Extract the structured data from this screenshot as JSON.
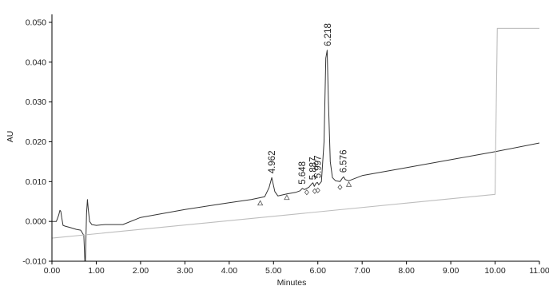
{
  "chart_data": {
    "type": "line",
    "xlabel": "Minutes",
    "ylabel": "AU",
    "xlim": [
      0.0,
      11.0
    ],
    "ylim": [
      -0.01,
      0.052
    ],
    "x_ticks": [
      "0.00",
      "1.00",
      "2.00",
      "3.00",
      "4.00",
      "5.00",
      "6.00",
      "7.00",
      "8.00",
      "9.00",
      "10.00",
      "11.00"
    ],
    "y_ticks": [
      "-0.010",
      "0.000",
      "0.010",
      "0.020",
      "0.030",
      "0.040",
      "0.050"
    ],
    "grid": false,
    "colors": {
      "chromatogram": "#333333",
      "gradient": "#bdbdbd",
      "axis": "#000000",
      "marker": "#555555"
    },
    "series": [
      {
        "x": [
          0.0,
          0.1,
          0.15,
          0.18,
          0.2,
          0.22,
          0.25,
          0.3,
          0.4,
          0.55,
          0.65,
          0.72,
          0.75,
          0.78,
          0.8,
          0.82,
          0.85,
          0.9,
          1.0,
          1.2,
          1.6,
          2.0,
          3.0,
          4.0,
          4.5,
          4.8,
          4.9,
          4.96,
          5.03,
          5.1,
          5.3,
          5.5,
          5.6,
          5.65,
          5.7,
          5.8,
          5.86,
          5.89,
          5.92,
          5.96,
          5.99,
          6.02,
          6.08,
          6.14,
          6.18,
          6.21,
          6.24,
          6.28,
          6.33,
          6.4,
          6.5,
          6.55,
          6.58,
          6.62,
          6.7,
          7.0,
          8.0,
          9.0,
          10.0,
          11.0
        ],
        "y": [
          0.0,
          0.0,
          0.0015,
          0.0028,
          0.0025,
          0.001,
          -0.001,
          -0.0012,
          -0.0015,
          -0.002,
          -0.0022,
          -0.0035,
          -0.012,
          0.002,
          0.0055,
          0.003,
          0.0,
          -0.0008,
          -0.001,
          -0.0008,
          -0.0008,
          0.001,
          0.003,
          0.0047,
          0.0055,
          0.0062,
          0.0085,
          0.011,
          0.0075,
          0.0064,
          0.0069,
          0.0073,
          0.0077,
          0.0083,
          0.008,
          0.0086,
          0.0094,
          0.0097,
          0.0088,
          0.0096,
          0.0098,
          0.0092,
          0.01,
          0.02,
          0.041,
          0.043,
          0.03,
          0.015,
          0.011,
          0.0102,
          0.01,
          0.0108,
          0.0112,
          0.0105,
          0.0102,
          0.0115,
          0.0135,
          0.0155,
          0.0175,
          0.0197
        ]
      },
      {
        "x": [
          0.0,
          10.0,
          10.0,
          10.05,
          11.0
        ],
        "y": [
          -0.0042,
          0.0068,
          0.0068,
          0.0485,
          0.0485
        ]
      }
    ],
    "peaks": [
      {
        "label": "4.962",
        "x": 4.962,
        "y": 0.011
      },
      {
        "label": "5.648",
        "x": 5.648,
        "y": 0.0083
      },
      {
        "label": "5.887",
        "x": 5.887,
        "y": 0.0094
      },
      {
        "label": "5.997",
        "x": 5.997,
        "y": 0.0098
      },
      {
        "label": "6.218",
        "x": 6.218,
        "y": 0.043
      },
      {
        "label": "6.576",
        "x": 6.576,
        "y": 0.0112
      }
    ],
    "markers": [
      {
        "shape": "triangle",
        "x": 4.7,
        "y": 0.0054
      },
      {
        "shape": "triangle",
        "x": 5.3,
        "y": 0.0068
      },
      {
        "shape": "diamond",
        "x": 5.75,
        "y": 0.0081
      },
      {
        "shape": "diamond",
        "x": 5.93,
        "y": 0.0084
      },
      {
        "shape": "diamond",
        "x": 6.0,
        "y": 0.0086
      },
      {
        "shape": "diamond",
        "x": 6.5,
        "y": 0.0094
      },
      {
        "shape": "triangle",
        "x": 6.7,
        "y": 0.0101
      }
    ]
  }
}
